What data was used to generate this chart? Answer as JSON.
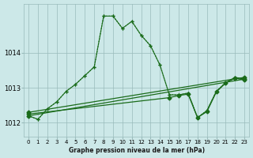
{
  "title": "Graphe pression niveau de la mer (hPa)",
  "background_color": "#cce8e8",
  "grid_color": "#99bbbb",
  "line_color": "#1a6b1a",
  "xlim": [
    -0.5,
    23.5
  ],
  "ylim": [
    1011.6,
    1015.4
  ],
  "yticks": [
    1012,
    1013,
    1014
  ],
  "xticks": [
    0,
    1,
    2,
    3,
    4,
    5,
    6,
    7,
    8,
    9,
    10,
    11,
    12,
    13,
    14,
    15,
    16,
    17,
    18,
    19,
    20,
    21,
    22,
    23
  ],
  "series": [
    {
      "x": [
        0,
        1,
        2,
        3,
        4,
        5,
        6,
        7,
        8,
        9,
        10,
        11,
        12,
        13,
        14,
        15,
        16,
        17,
        18,
        19,
        20,
        21,
        22,
        23
      ],
      "y": [
        1012.2,
        1012.1,
        1012.4,
        1012.6,
        1012.9,
        1013.1,
        1013.35,
        1013.6,
        1015.05,
        1015.05,
        1014.7,
        1014.9,
        1014.5,
        1014.2,
        1013.65,
        1012.8,
        1012.8,
        1012.85,
        1012.15,
        1012.35,
        1012.9,
        1013.15,
        1013.3,
        1013.25
      ],
      "style": "dotted",
      "marker": "+"
    },
    {
      "x": [
        0,
        1,
        2,
        3,
        4,
        5,
        6,
        7,
        8,
        9,
        10,
        11,
        12,
        13,
        14,
        15,
        16,
        17,
        18,
        19,
        20,
        21,
        22,
        23
      ],
      "y": [
        1012.2,
        1012.1,
        1012.4,
        1012.6,
        1012.9,
        1013.1,
        1013.35,
        1013.6,
        1015.05,
        1015.05,
        1014.7,
        1014.9,
        1014.5,
        1014.2,
        1013.65,
        1012.8,
        1012.8,
        1012.85,
        1012.15,
        1012.35,
        1012.9,
        1013.15,
        1013.3,
        1013.25
      ],
      "style": "solid",
      "marker": "+"
    },
    {
      "x": [
        0,
        23
      ],
      "y": [
        1012.2,
        1013.25
      ],
      "style": "solid",
      "marker": "D"
    },
    {
      "x": [
        0,
        15,
        16,
        17,
        18,
        19,
        20,
        21,
        22,
        23
      ],
      "y": [
        1012.25,
        1012.72,
        1012.78,
        1012.82,
        1012.15,
        1012.32,
        1012.88,
        1013.14,
        1013.28,
        1013.22
      ],
      "style": "solid",
      "marker": "D"
    },
    {
      "x": [
        0,
        23
      ],
      "y": [
        1012.3,
        1013.3
      ],
      "style": "solid",
      "marker": "D"
    }
  ]
}
